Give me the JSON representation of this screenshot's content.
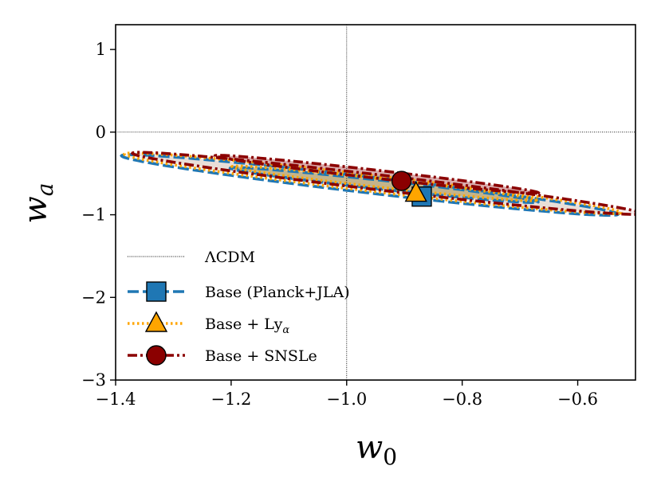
{
  "chart_data": {
    "type": "contour",
    "xlabel": "w",
    "xlabel_sub": "0",
    "ylabel": "w",
    "ylabel_sub": "a",
    "xlim": [
      -1.4,
      -0.5
    ],
    "ylim": [
      -3,
      1.3
    ],
    "xticks": [
      -1.4,
      -1.2,
      -1.0,
      -0.8,
      -0.6
    ],
    "xtick_labels": [
      "−1.4",
      "−1.2",
      "−1.0",
      "−0.8",
      "−0.6"
    ],
    "yticks": [
      1,
      0,
      -1,
      -2,
      -3
    ],
    "ytick_labels": [
      "1",
      "0",
      "−1",
      "−2",
      "−3"
    ],
    "reference": {
      "name": "ΛCDM",
      "w0": -1.0,
      "wa": 0.0
    },
    "legend_position": "lower-left",
    "series": [
      {
        "name": "Base (Planck+JLA)",
        "color": "#1f77b4",
        "linestyle": "dashed",
        "marker": "square",
        "best_fit": {
          "w0": -0.87,
          "wa": -0.78
        },
        "contours": {
          "1sigma": {
            "center": [
              -0.935,
              -0.64
            ],
            "semi_axes": [
              0.338,
              0.042
            ],
            "angle_deg": -38.3
          },
          "2sigma": {
            "center": [
              -0.96,
              -0.64
            ],
            "semi_axes": [
              0.56,
              0.075
            ],
            "angle_deg": -40.3
          }
        }
      },
      {
        "name": "Base + Ly",
        "name_sub": "α",
        "color": "#ffa500",
        "linestyle": "dotted",
        "marker": "triangle",
        "best_fit": {
          "w0": -0.88,
          "wa": -0.74
        },
        "contours": {
          "1sigma": {
            "center": [
              -0.935,
              -0.62
            ],
            "semi_axes": [
              0.334,
              0.042
            ],
            "angle_deg": -38.3
          },
          "2sigma": {
            "center": [
              -0.955,
              -0.62
            ],
            "semi_axes": [
              0.56,
              0.075
            ],
            "angle_deg": -40.3
          }
        }
      },
      {
        "name": "Base + SNSLe",
        "color": "#8b0000",
        "linestyle": "dashdot",
        "marker": "circle",
        "best_fit": {
          "w0": -0.905,
          "wa": -0.59
        },
        "contours": {
          "1sigma": {
            "center": [
              -0.948,
              -0.51
            ],
            "semi_axes": [
              0.36,
              0.038
            ],
            "angle_deg": -39.2
          },
          "2sigma": {
            "center": [
              -0.93,
              -0.62
            ],
            "semi_axes": [
              0.575,
              0.07
            ],
            "angle_deg": -40.3
          }
        }
      }
    ]
  }
}
